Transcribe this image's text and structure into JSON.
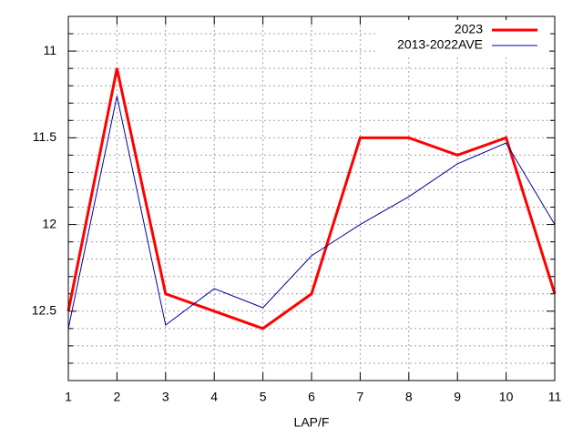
{
  "chart_data": {
    "type": "line",
    "x_label": "LAP/F",
    "x": [
      1,
      2,
      3,
      4,
      5,
      6,
      7,
      8,
      9,
      10,
      11
    ],
    "xlim": [
      1,
      11
    ],
    "xticks": [
      1,
      2,
      3,
      4,
      5,
      6,
      7,
      8,
      9,
      10,
      11
    ],
    "ylim": [
      12.9,
      10.8
    ],
    "yticks": [
      11,
      11.5,
      12,
      12.5
    ],
    "yminorticks": [
      10.9,
      11.1,
      11.2,
      11.3,
      11.4,
      11.6,
      11.7,
      11.8,
      11.9,
      12.1,
      12.2,
      12.3,
      12.4,
      12.6,
      12.7,
      12.8
    ],
    "grid": true,
    "legend": "top-right",
    "series": [
      {
        "name": "2023",
        "color": "#ff0000",
        "width": 3,
        "values": [
          12.5,
          11.1,
          12.4,
          12.5,
          12.6,
          12.4,
          11.5,
          11.5,
          11.6,
          11.5,
          12.4
        ]
      },
      {
        "name": "2013-2022AVE",
        "color": "#0000a0",
        "width": 1,
        "values": [
          12.6,
          11.26,
          12.58,
          12.37,
          12.48,
          12.18,
          12.0,
          11.84,
          11.65,
          11.53,
          12.0
        ]
      }
    ]
  }
}
